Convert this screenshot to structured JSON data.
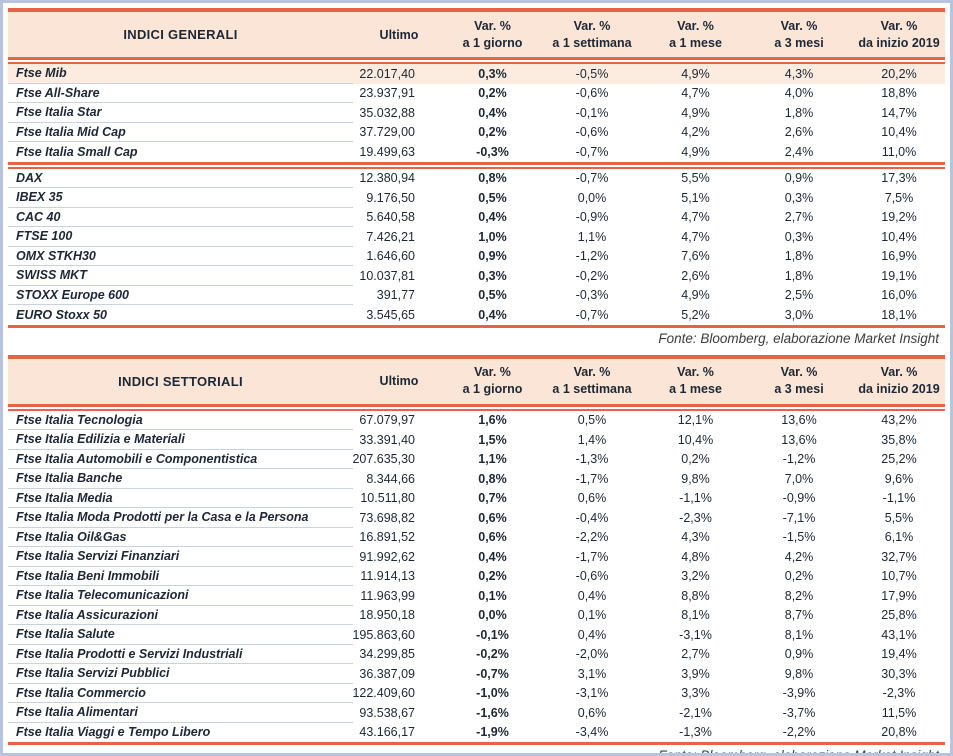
{
  "fonte": "Fonte: Bloomberg, elaborazione Market Insight",
  "colors": {
    "accent_red": "#e8614a",
    "header_bg": "#fbe5d6",
    "highlight_row_bg": "#fcebdf",
    "row_separator": "#c9d3df",
    "frame_blue": "#b7c3e0",
    "text": "#1d2735"
  },
  "columns": {
    "var_label": "Var. %",
    "ultimo": "Ultimo",
    "periods": [
      "a 1 giorno",
      "a 1 settimana",
      "a 1 mese",
      "a 3 mesi",
      "da inizio 2019"
    ]
  },
  "tables": [
    {
      "title": "INDICI GENERALI",
      "rows": [
        {
          "name": "Ftse Mib",
          "ultimo": "22.017,40",
          "d1": "0,3%",
          "w1": "-0,5%",
          "m1": "4,9%",
          "m3": "4,3%",
          "ytd": "20,2%",
          "highlight": true
        },
        {
          "name": "Ftse All-Share",
          "ultimo": "23.937,91",
          "d1": "0,2%",
          "w1": "-0,6%",
          "m1": "4,7%",
          "m3": "4,0%",
          "ytd": "18,8%"
        },
        {
          "name": "Ftse Italia Star",
          "ultimo": "35.032,88",
          "d1": "0,4%",
          "w1": "-0,1%",
          "m1": "4,9%",
          "m3": "1,8%",
          "ytd": "14,7%"
        },
        {
          "name": "Ftse Italia Mid Cap",
          "ultimo": "37.729,00",
          "d1": "0,2%",
          "w1": "-0,6%",
          "m1": "4,2%",
          "m3": "2,6%",
          "ytd": "10,4%"
        },
        {
          "name": "Ftse Italia Small Cap",
          "ultimo": "19.499,63",
          "d1": "-0,3%",
          "w1": "-0,7%",
          "m1": "4,9%",
          "m3": "2,4%",
          "ytd": "11,0%",
          "group_end": true
        },
        {
          "name": "DAX",
          "ultimo": "12.380,94",
          "d1": "0,8%",
          "w1": "-0,7%",
          "m1": "5,5%",
          "m3": "0,9%",
          "ytd": "17,3%"
        },
        {
          "name": "IBEX 35",
          "ultimo": "9.176,50",
          "d1": "0,5%",
          "w1": "0,0%",
          "m1": "5,1%",
          "m3": "0,3%",
          "ytd": "7,5%"
        },
        {
          "name": "CAC 40",
          "ultimo": "5.640,58",
          "d1": "0,4%",
          "w1": "-0,9%",
          "m1": "4,7%",
          "m3": "2,7%",
          "ytd": "19,2%"
        },
        {
          "name": "FTSE 100",
          "ultimo": "7.426,21",
          "d1": "1,0%",
          "w1": "1,1%",
          "m1": "4,7%",
          "m3": "0,3%",
          "ytd": "10,4%"
        },
        {
          "name": "OMX STKH30",
          "ultimo": "1.646,60",
          "d1": "0,9%",
          "w1": "-1,2%",
          "m1": "7,6%",
          "m3": "1,8%",
          "ytd": "16,9%"
        },
        {
          "name": "SWISS MKT",
          "ultimo": "10.037,81",
          "d1": "0,3%",
          "w1": "-0,2%",
          "m1": "2,6%",
          "m3": "1,8%",
          "ytd": "19,1%"
        },
        {
          "name": "STOXX Europe 600",
          "ultimo": "391,77",
          "d1": "0,5%",
          "w1": "-0,3%",
          "m1": "4,9%",
          "m3": "2,5%",
          "ytd": "16,0%"
        },
        {
          "name": "EURO Stoxx 50",
          "ultimo": "3.545,65",
          "d1": "0,4%",
          "w1": "-0,7%",
          "m1": "5,2%",
          "m3": "3,0%",
          "ytd": "18,1%"
        }
      ]
    },
    {
      "title": "INDICI SETTORIALI",
      "rows": [
        {
          "name": "Ftse Italia Tecnologia",
          "ultimo": "67.079,97",
          "d1": "1,6%",
          "w1": "0,5%",
          "m1": "12,1%",
          "m3": "13,6%",
          "ytd": "43,2%"
        },
        {
          "name": "Ftse Italia Edilizia e Materiali",
          "ultimo": "33.391,40",
          "d1": "1,5%",
          "w1": "1,4%",
          "m1": "10,4%",
          "m3": "13,6%",
          "ytd": "35,8%"
        },
        {
          "name": "Ftse Italia Automobili e Componentistica",
          "ultimo": "207.635,30",
          "d1": "1,1%",
          "w1": "-1,3%",
          "m1": "0,2%",
          "m3": "-1,2%",
          "ytd": "25,2%"
        },
        {
          "name": "Ftse Italia Banche",
          "ultimo": "8.344,66",
          "d1": "0,8%",
          "w1": "-1,7%",
          "m1": "9,8%",
          "m3": "7,0%",
          "ytd": "9,6%"
        },
        {
          "name": "Ftse Italia Media",
          "ultimo": "10.511,80",
          "d1": "0,7%",
          "w1": "0,6%",
          "m1": "-1,1%",
          "m3": "-0,9%",
          "ytd": "-1,1%"
        },
        {
          "name": "Ftse Italia Moda Prodotti per la Casa e la Persona",
          "ultimo": "73.698,82",
          "d1": "0,6%",
          "w1": "-0,4%",
          "m1": "-2,3%",
          "m3": "-7,1%",
          "ytd": "5,5%"
        },
        {
          "name": "Ftse Italia Oil&Gas",
          "ultimo": "16.891,52",
          "d1": "0,6%",
          "w1": "-2,2%",
          "m1": "4,3%",
          "m3": "-1,5%",
          "ytd": "6,1%"
        },
        {
          "name": "Ftse Italia Servizi Finanziari",
          "ultimo": "91.992,62",
          "d1": "0,4%",
          "w1": "-1,7%",
          "m1": "4,8%",
          "m3": "4,2%",
          "ytd": "32,7%"
        },
        {
          "name": "Ftse Italia Beni Immobili",
          "ultimo": "11.914,13",
          "d1": "0,2%",
          "w1": "-0,6%",
          "m1": "3,2%",
          "m3": "0,2%",
          "ytd": "10,7%"
        },
        {
          "name": "Ftse Italia Telecomunicazioni",
          "ultimo": "11.963,99",
          "d1": "0,1%",
          "w1": "0,4%",
          "m1": "8,8%",
          "m3": "8,2%",
          "ytd": "17,9%"
        },
        {
          "name": "Ftse Italia Assicurazioni",
          "ultimo": "18.950,18",
          "d1": "0,0%",
          "w1": "0,1%",
          "m1": "8,1%",
          "m3": "8,7%",
          "ytd": "25,8%"
        },
        {
          "name": "Ftse Italia Salute",
          "ultimo": "195.863,60",
          "d1": "-0,1%",
          "w1": "0,4%",
          "m1": "-3,1%",
          "m3": "8,1%",
          "ytd": "43,1%"
        },
        {
          "name": "Ftse Italia Prodotti e Servizi Industriali",
          "ultimo": "34.299,85",
          "d1": "-0,2%",
          "w1": "-2,0%",
          "m1": "2,7%",
          "m3": "0,9%",
          "ytd": "19,4%"
        },
        {
          "name": "Ftse Italia Servizi Pubblici",
          "ultimo": "36.387,09",
          "d1": "-0,7%",
          "w1": "3,1%",
          "m1": "3,9%",
          "m3": "9,8%",
          "ytd": "30,3%"
        },
        {
          "name": "Ftse Italia Commercio",
          "ultimo": "122.409,60",
          "d1": "-1,0%",
          "w1": "-3,1%",
          "m1": "3,3%",
          "m3": "-3,9%",
          "ytd": "-2,3%"
        },
        {
          "name": "Ftse Italia Alimentari",
          "ultimo": "93.538,67",
          "d1": "-1,6%",
          "w1": "0,6%",
          "m1": "-2,1%",
          "m3": "-3,7%",
          "ytd": "11,5%"
        },
        {
          "name": "Ftse Italia Viaggi e Tempo Libero",
          "ultimo": "43.166,17",
          "d1": "-1,9%",
          "w1": "-3,4%",
          "m1": "-1,3%",
          "m3": "-2,2%",
          "ytd": "20,8%"
        }
      ]
    }
  ]
}
